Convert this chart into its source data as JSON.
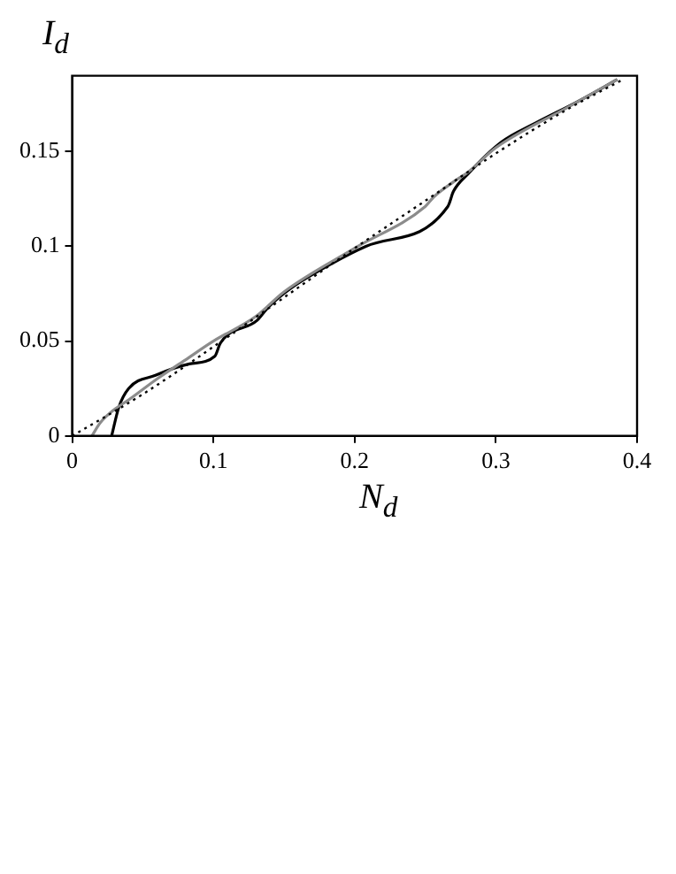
{
  "chart_data": {
    "type": "line",
    "xlabel": "N$_{d}$",
    "ylabel": "I$_{d}$",
    "xlim": [
      0,
      0.4
    ],
    "xticks": [
      0,
      0.1,
      0.2,
      0.3,
      0.4
    ],
    "ylim": [
      0,
      0.19
    ],
    "yticks": [
      0,
      0.05,
      0.1,
      0.15
    ],
    "grid": false,
    "legend": false,
    "marker": "none",
    "series": [
      {
        "color": "#000000",
        "line_style": "dotted",
        "x": [
          0,
          0.05,
          0.1,
          0.15,
          0.2,
          0.25,
          0.3,
          0.35,
          0.39
        ],
        "values": [
          0,
          0.022,
          0.047,
          0.073,
          0.099,
          0.124,
          0.149,
          0.172,
          0.188
        ]
      },
      {
        "color": "#8c8c8c",
        "line_style": "solid",
        "x": [
          0.014,
          0.02,
          0.03,
          0.04,
          0.06,
          0.08,
          0.1,
          0.13,
          0.15,
          0.2,
          0.25,
          0.256,
          0.27,
          0.28,
          0.3,
          0.35,
          0.386
        ],
        "values": [
          0,
          0.007,
          0.014,
          0.019,
          0.03,
          0.04,
          0.05,
          0.063,
          0.076,
          0.099,
          0.121,
          0.126,
          0.134,
          0.139,
          0.152,
          0.173,
          0.188
        ]
      },
      {
        "color": "#000000",
        "line_style": "solid",
        "x": [
          0.028,
          0.033,
          0.04,
          0.059,
          0.083,
          0.101,
          0.105,
          0.131,
          0.139,
          0.155,
          0.184,
          0.208,
          0.266,
          0.27,
          0.28,
          0.304,
          0.328,
          0.357,
          0.386
        ],
        "values": [
          0,
          0.015,
          0.025,
          0.032,
          0.038,
          0.042,
          0.049,
          0.061,
          0.068,
          0.078,
          0.091,
          0.1,
          0.121,
          0.129,
          0.138,
          0.155,
          0.165,
          0.176,
          0.188
        ]
      }
    ]
  }
}
